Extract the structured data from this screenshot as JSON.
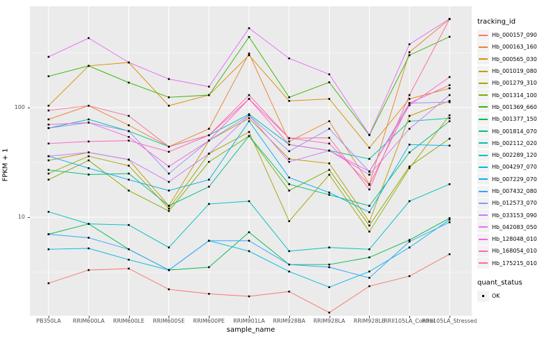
{
  "chart_data": {
    "type": "line",
    "title": "",
    "xlabel": "sample_name",
    "ylabel": "FPKM + 1",
    "y_scale": "log10",
    "ylim": [
      1.26,
      840
    ],
    "grid": true,
    "panel_bg": "#EBEBEB",
    "grid_color": "#FFFFFF",
    "point_color": "#000000",
    "point_shape": "filled-square",
    "y_ticks": [
      {
        "label": "100",
        "value": 100
      },
      {
        "label": "10",
        "value": 10
      }
    ],
    "y_minor_gridlines": [
      316.23,
      31.623,
      3.1623
    ],
    "categories": [
      "PB350LA",
      "RRIM600LA",
      "RRIM600LE",
      "RRIM600SE",
      "RRIM600PE",
      "RRIM901LA",
      "RRIM928BA",
      "RRIM928LA",
      "RRIM928LE",
      "RRII105LA_Control",
      "RRII105LA_Stressed"
    ],
    "legend": {
      "color_title": "tracking_id",
      "shape_title": "quant_status",
      "shape_items": [
        {
          "label": "OK"
        }
      ],
      "position": "right"
    },
    "series": [
      {
        "name": "Hb_000157_090",
        "color": "#F8766D",
        "values": [
          2.5,
          3.3,
          3.4,
          2.2,
          2.0,
          1.9,
          2.1,
          1.35,
          2.35,
          2.9,
          4.6
        ]
      },
      {
        "name": "Hb_000163_160",
        "color": "#EA8331",
        "values": [
          78,
          104,
          69,
          44,
          64,
          311,
          49,
          75,
          20,
          320,
          640
        ]
      },
      {
        "name": "Hb_000565_030",
        "color": "#D89000",
        "values": [
          104,
          240,
          258,
          104,
          130,
          300,
          115,
          120,
          43,
          120,
          150
        ]
      },
      {
        "name": "Hb_001019_080",
        "color": "#C09B00",
        "values": [
          33,
          39,
          33.5,
          12.7,
          50,
          80,
          34,
          31,
          9.1,
          84,
          115
        ]
      },
      {
        "name": "Hb_001279_310",
        "color": "#A3A500",
        "values": [
          25,
          36,
          29.5,
          12,
          38,
          60,
          9.2,
          24.4,
          7.4,
          28,
          85
        ]
      },
      {
        "name": "Hb_001314_100",
        "color": "#7CAE00",
        "values": [
          22,
          33,
          17.5,
          11.4,
          32,
          55,
          17.5,
          27,
          8.4,
          29,
          52
        ]
      },
      {
        "name": "Hb_001369_660",
        "color": "#39B600",
        "values": [
          193,
          240,
          169,
          124,
          130,
          440,
          124,
          170,
          56,
          300,
          442
        ]
      },
      {
        "name": "Hb_001377_150",
        "color": "#00BB4E",
        "values": [
          7.0,
          8.7,
          5.1,
          3.3,
          3.5,
          7.3,
          3.7,
          3.7,
          4.3,
          6.2,
          9.8
        ]
      },
      {
        "name": "Hb_001814_070",
        "color": "#00BF7D",
        "values": [
          27,
          24.5,
          25,
          12.7,
          19,
          55,
          20,
          16,
          12.7,
          39,
          75
        ]
      },
      {
        "name": "Hb_002112_020",
        "color": "#00C1A3",
        "values": [
          65,
          78,
          61,
          44,
          56,
          87,
          46,
          40.5,
          34,
          75,
          80
        ]
      },
      {
        "name": "Hb_002289_120",
        "color": "#00BFC4",
        "values": [
          11.2,
          8.7,
          8.5,
          5.3,
          13.2,
          14,
          4.9,
          5.3,
          5.1,
          14,
          20
        ]
      },
      {
        "name": "Hb_004297_070",
        "color": "#00BAE0",
        "values": [
          5.1,
          5.2,
          4.1,
          3.3,
          6.1,
          4.9,
          3.2,
          2.3,
          3.2,
          5.3,
          9.5
        ]
      },
      {
        "name": "Hb_007229_070",
        "color": "#00B0F6",
        "values": [
          36,
          28,
          22,
          17.5,
          22,
          75,
          23,
          16.8,
          11.1,
          46,
          45
        ]
      },
      {
        "name": "Hb_007432_080",
        "color": "#35A2FF",
        "values": [
          7.0,
          6.5,
          5.1,
          3.3,
          6.1,
          6.1,
          3.7,
          3.5,
          2.8,
          6.0,
          9.0
        ]
      },
      {
        "name": "Hb_012573_070",
        "color": "#9590FF",
        "values": [
          65,
          73,
          61,
          25,
          50,
          85,
          40,
          64,
          26,
          110,
          112
        ]
      },
      {
        "name": "Hb_033153_090",
        "color": "#C77CFF",
        "values": [
          36,
          39,
          33.5,
          21,
          38,
          85,
          32,
          40.5,
          24.4,
          64,
          130
        ]
      },
      {
        "name": "Hb_042083_050",
        "color": "#E76BF3",
        "values": [
          290,
          430,
          258,
          182,
          155,
          530,
          281,
          201,
          56.5,
          378,
          645
        ]
      },
      {
        "name": "Hb_128048_010",
        "color": "#FA62DB",
        "values": [
          70,
          73,
          54,
          29,
          50,
          120,
          46,
          40.5,
          26.2,
          105,
          190
        ]
      },
      {
        "name": "Hb_168054_010",
        "color": "#FF62BC",
        "values": [
          47,
          49,
          50,
          39.5,
          56,
          120,
          52.6,
          47,
          19.7,
          110,
          160
        ]
      },
      {
        "name": "Hb_175215_010",
        "color": "#FF6A98",
        "values": [
          94,
          104,
          84,
          44,
          56,
          130,
          52.6,
          53,
          17.9,
          130,
          640
        ]
      }
    ]
  }
}
